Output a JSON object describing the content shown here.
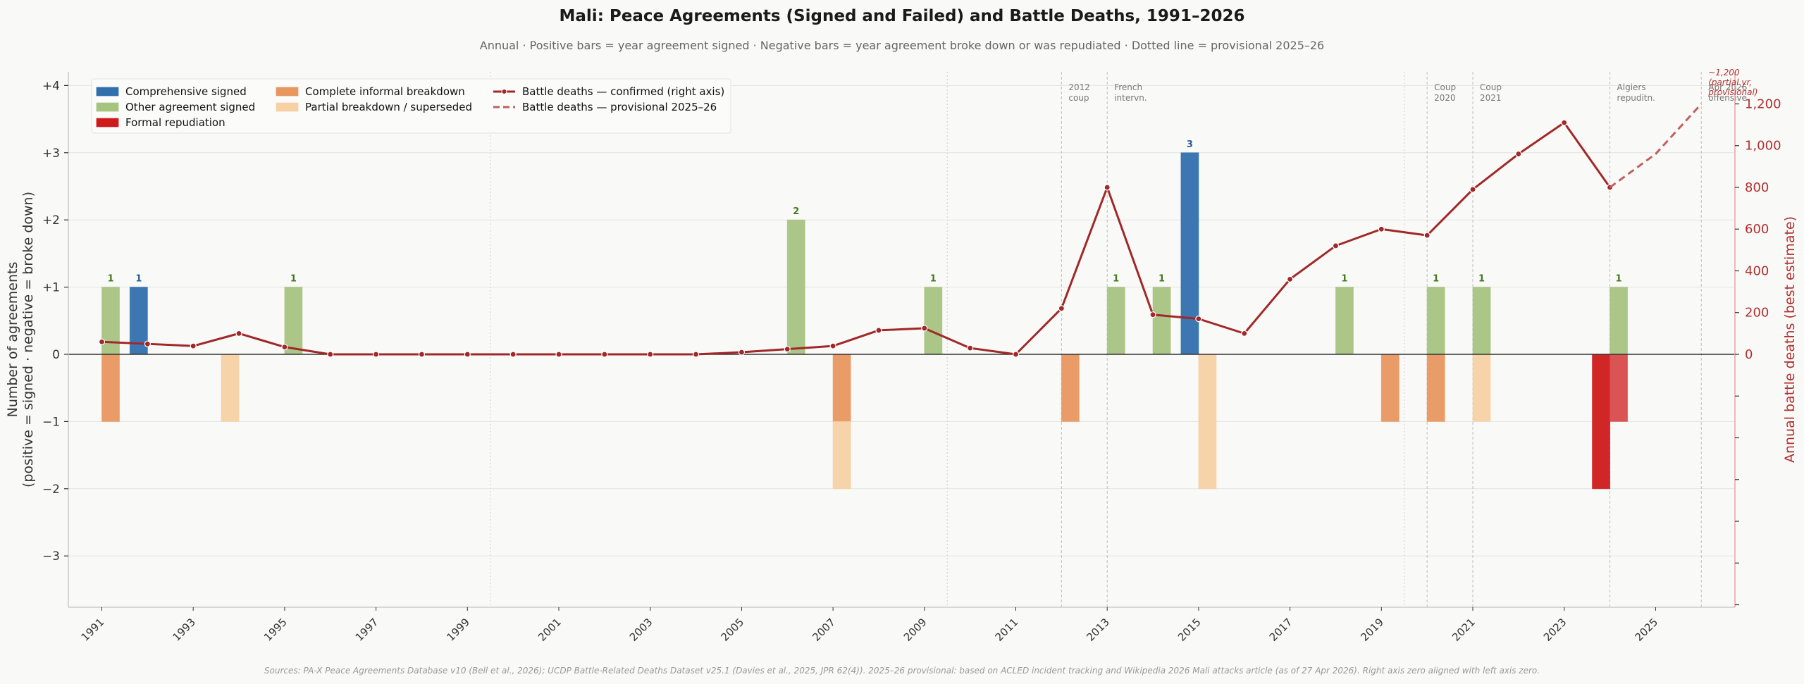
{
  "chart_data": {
    "type": "bar",
    "title": "Mali: Peace Agreements (Signed and Failed) and Battle Deaths, 1991–2026",
    "subtitle": "Annual  ·  Positive bars = year agreement signed  ·  Negative bars = year agreement broke down or was repudiated  ·  Dotted line = provisional 2025–26",
    "footer": "Sources: PA-X Peace Agreements Database v10 (Bell et al., 2026); UCDP Battle-Related Deaths Dataset v25.1 (Davies et al., 2025, JPR 62(4)). 2025–26 provisional: based on ACLED incident tracking and Wikipedia 2026 Mali attacks article (as of 27 Apr 2026). Right axis zero aligned with left axis zero.",
    "ylabel_line1": "Number of agreements",
    "ylabel_line2": "(positive = signed  ·  negative = broke down)",
    "y2label": "Annual battle deaths (best estimate)",
    "ylim": [
      -3.75,
      4.2
    ],
    "yticks": [
      {
        "value": 4,
        "label": "+4"
      },
      {
        "value": 3,
        "label": "+3"
      },
      {
        "value": 2,
        "label": "+2"
      },
      {
        "value": 1,
        "label": "+1"
      },
      {
        "value": 0,
        "label": "0"
      },
      {
        "value": -1,
        "label": "−1"
      },
      {
        "value": -2,
        "label": "−2"
      },
      {
        "value": -3,
        "label": "−3"
      }
    ],
    "y2ticks": [
      {
        "value": 0,
        "label": "0"
      },
      {
        "value": 200,
        "label": "200"
      },
      {
        "value": 400,
        "label": "400"
      },
      {
        "value": 600,
        "label": "600"
      },
      {
        "value": 800,
        "label": "800"
      },
      {
        "value": 1000,
        "label": "1,000"
      },
      {
        "value": 1200,
        "label": "1,200"
      }
    ],
    "y2_units_per_left_unit": 322,
    "xlim": [
      1990.2,
      2026.7
    ],
    "xticks": [
      "1991",
      "1993",
      "1995",
      "1997",
      "1999",
      "2001",
      "2003",
      "2005",
      "2007",
      "2009",
      "2011",
      "2013",
      "2015",
      "2017",
      "2019",
      "2021",
      "2023",
      "2025"
    ],
    "decade_separators": [
      1999.5,
      2009.5,
      2019.5
    ],
    "colors": {
      "comprehensive": "#3170ad",
      "other": "#a6c37f",
      "repudiation": "#cd1a1a",
      "repudiation_light": "#d94b4b",
      "complete_breakdown": "#e8975f",
      "partial_breakdown": "#f6d1a3",
      "line": "#a02828",
      "line_provisional": "#c06060",
      "label_green": "#3f7a1a",
      "label_blue": "#2a5d94"
    },
    "legend": {
      "placement": "top-left",
      "items": [
        {
          "label": "Comprehensive signed",
          "kind": "patch",
          "color_key": "comprehensive"
        },
        {
          "label": "Other agreement signed",
          "kind": "patch",
          "color_key": "other"
        },
        {
          "label": "Formal repudiation",
          "kind": "patch",
          "color_key": "repudiation"
        },
        {
          "label": "Complete informal breakdown",
          "kind": "patch",
          "color_key": "complete_breakdown"
        },
        {
          "label": "Partial breakdown / superseded",
          "kind": "patch",
          "color_key": "partial_breakdown"
        },
        {
          "label": "Battle deaths — confirmed (right axis)",
          "kind": "line",
          "color_key": "line"
        },
        {
          "label": "Battle deaths — provisional 2025–26",
          "kind": "dash",
          "color_key": "line_provisional"
        }
      ]
    },
    "bars": [
      {
        "year": 1991,
        "side": "right",
        "category": "Other agreement signed",
        "color_key": "other",
        "bottom": 0,
        "value": 1,
        "label": "1",
        "label_color_key": "label_green"
      },
      {
        "year": 1991,
        "side": "right",
        "category": "Complete informal breakdown",
        "color_key": "complete_breakdown",
        "bottom": 0,
        "value": -1
      },
      {
        "year": 1992,
        "side": "left",
        "category": "Comprehensive signed",
        "color_key": "comprehensive",
        "bottom": 0,
        "value": 1,
        "label": "1",
        "label_color_key": "label_blue"
      },
      {
        "year": 1994,
        "side": "left",
        "category": "Partial breakdown / superseded",
        "color_key": "partial_breakdown",
        "bottom": 0,
        "value": -1
      },
      {
        "year": 1995,
        "side": "right",
        "category": "Other agreement signed",
        "color_key": "other",
        "bottom": 0,
        "value": 1,
        "label": "1",
        "label_color_key": "label_green"
      },
      {
        "year": 2006,
        "side": "right",
        "category": "Other agreement signed",
        "color_key": "other",
        "bottom": 0,
        "value": 2,
        "label": "2",
        "label_color_key": "label_green"
      },
      {
        "year": 2007,
        "side": "right",
        "category": "Complete informal breakdown",
        "color_key": "complete_breakdown",
        "bottom": 0,
        "value": -1
      },
      {
        "year": 2007,
        "side": "right",
        "category": "Partial breakdown / superseded",
        "color_key": "partial_breakdown",
        "bottom": -1,
        "value": -1
      },
      {
        "year": 2009,
        "side": "right",
        "category": "Other agreement signed",
        "color_key": "other",
        "bottom": 0,
        "value": 1,
        "label": "1",
        "label_color_key": "label_green"
      },
      {
        "year": 2012,
        "side": "right",
        "category": "Complete informal breakdown",
        "color_key": "complete_breakdown",
        "bottom": 0,
        "value": -1
      },
      {
        "year": 2013,
        "side": "right",
        "category": "Other agreement signed",
        "color_key": "other",
        "bottom": 0,
        "value": 1,
        "label": "1",
        "label_color_key": "label_green"
      },
      {
        "year": 2014,
        "side": "right",
        "category": "Other agreement signed",
        "color_key": "other",
        "bottom": 0,
        "value": 1,
        "label": "1",
        "label_color_key": "label_green"
      },
      {
        "year": 2015,
        "side": "left",
        "category": "Comprehensive signed",
        "color_key": "comprehensive",
        "bottom": 0,
        "value": 3,
        "label": "3",
        "label_color_key": "label_blue"
      },
      {
        "year": 2015,
        "side": "right",
        "category": "Partial breakdown / superseded",
        "color_key": "partial_breakdown",
        "bottom": 0,
        "value": -2
      },
      {
        "year": 2018,
        "side": "right",
        "category": "Other agreement signed",
        "color_key": "other",
        "bottom": 0,
        "value": 1,
        "label": "1",
        "label_color_key": "label_green"
      },
      {
        "year": 2019,
        "side": "right",
        "category": "Complete informal breakdown",
        "color_key": "complete_breakdown",
        "bottom": 0,
        "value": -1
      },
      {
        "year": 2020,
        "side": "right",
        "category": "Other agreement signed",
        "color_key": "other",
        "bottom": 0,
        "value": 1,
        "label": "1",
        "label_color_key": "label_green"
      },
      {
        "year": 2020,
        "side": "right",
        "category": "Complete informal breakdown",
        "color_key": "complete_breakdown",
        "bottom": 0,
        "value": -1
      },
      {
        "year": 2021,
        "side": "right",
        "category": "Other agreement signed",
        "color_key": "other",
        "bottom": 0,
        "value": 1,
        "label": "1",
        "label_color_key": "label_green"
      },
      {
        "year": 2021,
        "side": "right",
        "category": "Partial breakdown / superseded",
        "color_key": "partial_breakdown",
        "bottom": 0,
        "value": -1
      },
      {
        "year": 2024,
        "side": "left",
        "category": "Formal repudiation",
        "color_key": "repudiation",
        "bottom": 0,
        "value": -2
      },
      {
        "year": 2024,
        "side": "right",
        "category": "Other agreement signed",
        "color_key": "other",
        "bottom": 0,
        "value": 1,
        "label": "1",
        "label_color_key": "label_green"
      },
      {
        "year": 2024,
        "side": "right",
        "category": "Formal repudiation (lighter)",
        "color_key": "repudiation_light",
        "bottom": 0,
        "value": -1
      }
    ],
    "battle_deaths_confirmed": {
      "x": [
        1991,
        1992,
        1993,
        1994,
        1995,
        1996,
        1997,
        1998,
        1999,
        2000,
        2001,
        2002,
        2003,
        2004,
        2005,
        2006,
        2007,
        2008,
        2009,
        2010,
        2011,
        2012,
        2013,
        2014,
        2015,
        2016,
        2017,
        2018,
        2019,
        2020,
        2021,
        2022,
        2023,
        2024
      ],
      "y": [
        60,
        50,
        40,
        100,
        35,
        0,
        0,
        0,
        0,
        0,
        0,
        0,
        0,
        0,
        10,
        25,
        40,
        115,
        125,
        30,
        0,
        220,
        800,
        190,
        170,
        100,
        360,
        520,
        600,
        570,
        790,
        960,
        1110,
        800
      ]
    },
    "battle_deaths_provisional": {
      "x": [
        2024,
        2025,
        2026
      ],
      "y": [
        800,
        960,
        1200
      ]
    },
    "events": [
      {
        "year": 2012,
        "lines": [
          "2012",
          "coup"
        ]
      },
      {
        "year": 2013,
        "lines": [
          "French",
          "intervn."
        ]
      },
      {
        "year": 2020,
        "lines": [
          "Coup",
          "2020"
        ]
      },
      {
        "year": 2021,
        "lines": [
          "Coup",
          "2021"
        ]
      },
      {
        "year": 2024,
        "lines": [
          "Algiers",
          "repuditn."
        ]
      },
      {
        "year": 2026,
        "lines": [
          "Apr 2026",
          "offensive"
        ]
      }
    ],
    "annotation": {
      "year": 2026,
      "lines": [
        "~1,200",
        "(partial yr,",
        "provisional)"
      ]
    }
  }
}
